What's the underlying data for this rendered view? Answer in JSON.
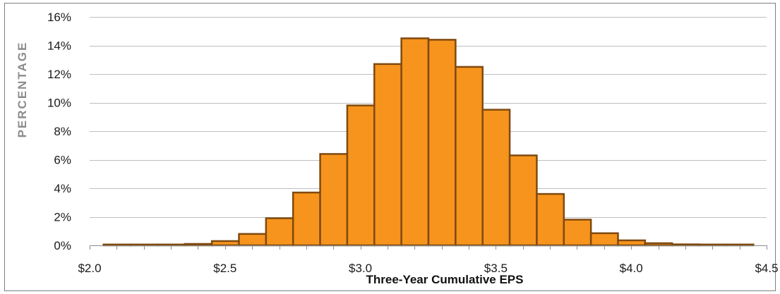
{
  "chart_data": {
    "type": "bar",
    "title": "",
    "xlabel": "Three-Year Cumulative EPS",
    "ylabel": "PERCENTAGE",
    "bin_width": 0.1,
    "x": [
      2.1,
      2.2,
      2.3,
      2.4,
      2.5,
      2.6,
      2.7,
      2.8,
      2.9,
      3.0,
      3.1,
      3.2,
      3.3,
      3.4,
      3.5,
      3.6,
      3.7,
      3.8,
      3.9,
      4.0,
      4.1,
      4.2,
      4.3,
      4.4
    ],
    "values": [
      0.02,
      0.03,
      0.05,
      0.1,
      0.3,
      0.8,
      1.9,
      3.7,
      6.4,
      9.8,
      12.7,
      14.5,
      14.4,
      12.5,
      9.5,
      6.3,
      3.6,
      1.8,
      0.85,
      0.35,
      0.15,
      0.07,
      0.04,
      0.02
    ],
    "xlim": [
      2.0,
      4.5
    ],
    "ylim": [
      0,
      16
    ],
    "x_ticks": [
      "$2.0",
      "$2.5",
      "$3.0",
      "$3.5",
      "$4.0",
      "$4.5"
    ],
    "x_tick_values": [
      2.0,
      2.5,
      3.0,
      3.5,
      4.0,
      4.5
    ],
    "y_ticks": [
      "0%",
      "2%",
      "4%",
      "6%",
      "8%",
      "10%",
      "12%",
      "14%",
      "16%"
    ],
    "y_tick_values": [
      0,
      2,
      4,
      6,
      8,
      10,
      12,
      14,
      16
    ],
    "grid": true,
    "legend": "none",
    "bar_fill": "#f7941d",
    "bar_edge": "#7f4a10"
  }
}
